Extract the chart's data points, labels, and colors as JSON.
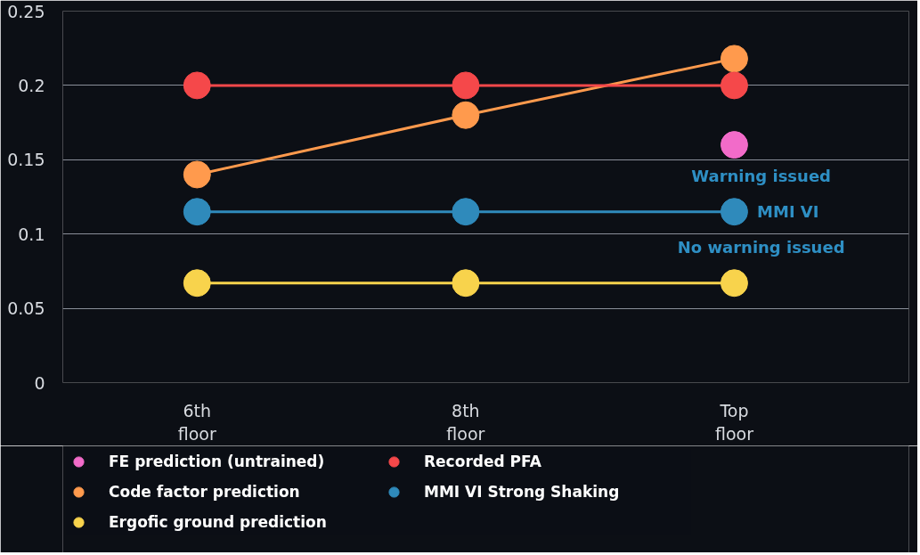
{
  "chart_data": {
    "type": "line",
    "categories": [
      "6th floor",
      "8th floor",
      "Top floor"
    ],
    "series": [
      {
        "name": "FE prediction (untrained)",
        "color": "#f26bc9",
        "values": [
          null,
          null,
          0.16
        ]
      },
      {
        "name": "Code factor prediction",
        "color": "#ff9a4d",
        "values": [
          0.14,
          0.18,
          0.218
        ]
      },
      {
        "name": "Ergofic ground prediction",
        "color": "#f8d34c",
        "values": [
          0.067,
          0.067,
          0.067
        ]
      },
      {
        "name": "Recorded PFA",
        "color": "#f5484a",
        "values": [
          0.2,
          0.2,
          0.2
        ]
      },
      {
        "name": "MMI VI Strong Shaking",
        "color": "#2f8abb",
        "values": [
          0.115,
          0.115,
          0.115
        ]
      }
    ],
    "ylim": [
      0,
      0.25
    ],
    "yticks": [
      0,
      0.05,
      {
        "value": 0.1,
        "label": "0.1"
      },
      0.15,
      {
        "value": 0.2,
        "label": "0.2"
      },
      0.25
    ],
    "grid": "y",
    "marker": "circle",
    "legend": "bottom",
    "annotations": [
      "Warning issued",
      {
        "text": "MMI VI",
        "x": "Top floor",
        "y": 0.115
      },
      "No warning issued"
    ]
  }
}
